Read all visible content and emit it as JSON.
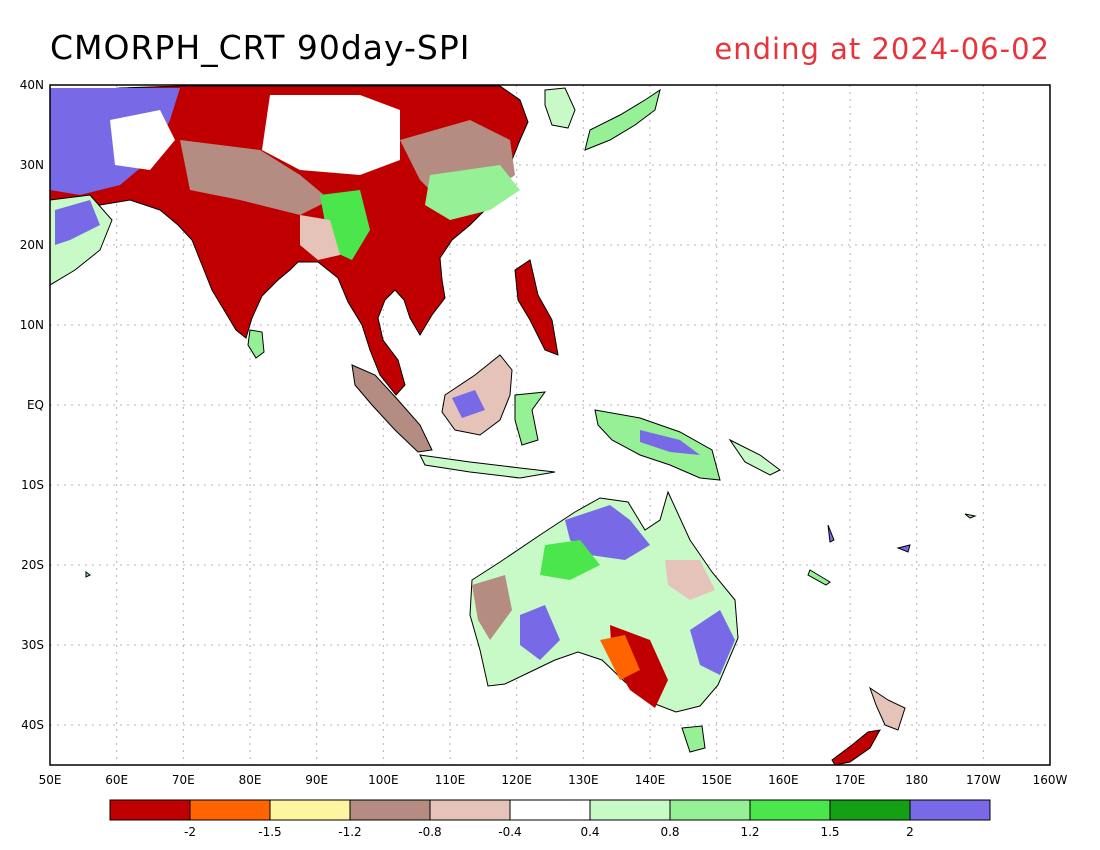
{
  "header": {
    "title": "CMORPH_CRT 90day-SPI",
    "subtitle": "ending at 2024-06-02"
  },
  "map": {
    "lon_range": [
      50,
      200
    ],
    "lat_range": [
      -45,
      40
    ],
    "lon_ticks": [
      "50E",
      "60E",
      "70E",
      "80E",
      "90E",
      "100E",
      "110E",
      "120E",
      "130E",
      "140E",
      "150E",
      "160E",
      "170E",
      "180",
      "170W",
      "160W"
    ],
    "lat_ticks": [
      "40N",
      "30N",
      "20N",
      "10N",
      "EQ",
      "10S",
      "20S",
      "30S",
      "40S"
    ]
  },
  "legend": {
    "colors": [
      "#c00000",
      "#ff6400",
      "#fff5a0",
      "#b48c82",
      "#e6c3b9",
      "#ffffff",
      "#c8fac8",
      "#96f096",
      "#4be64b",
      "#14a014",
      "#7869e6"
    ],
    "labels": [
      "-2",
      "-1.5",
      "-1.2",
      "-0.8",
      "-0.4",
      "0.4",
      "0.8",
      "1.2",
      "1.5",
      "2"
    ]
  },
  "colors": {
    "land_outline": "#000000",
    "grid": "#b4b4b4",
    "subtitle": "#e8333a"
  }
}
